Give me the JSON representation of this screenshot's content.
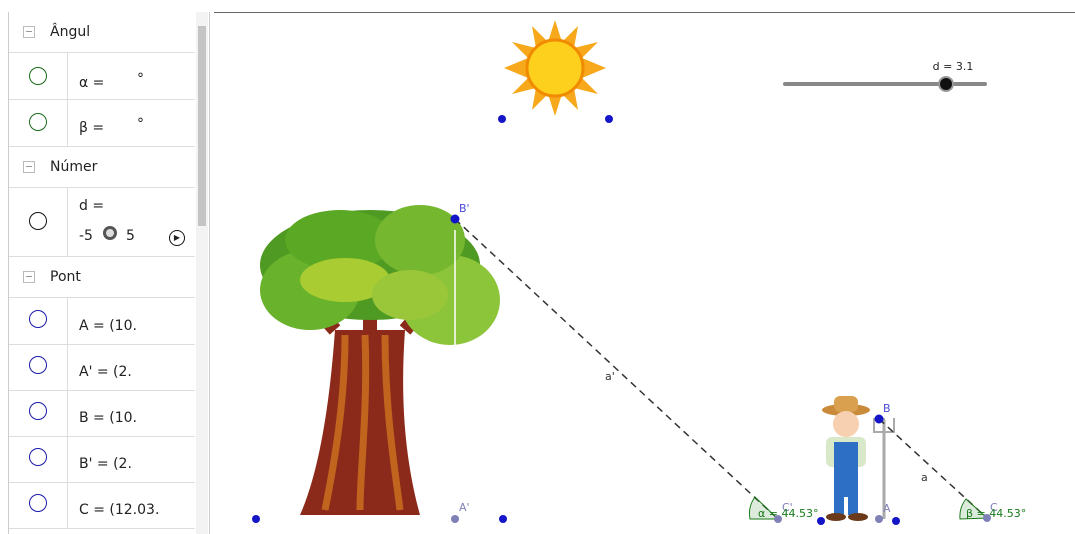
{
  "sidebar": {
    "groups": [
      {
        "title": "Ângul",
        "items": [
          {
            "label": "α =",
            "unit": "°"
          },
          {
            "label": "β =",
            "unit": "°"
          }
        ]
      },
      {
        "title": "Númer",
        "items": [
          {
            "label": "d =",
            "min": "-5",
            "max": "5"
          }
        ]
      },
      {
        "title": "Pont",
        "items": [
          {
            "label": "A = (10."
          },
          {
            "label": "A' = (2."
          },
          {
            "label": "B = (10."
          },
          {
            "label": "B' = (2."
          },
          {
            "label": "C = (12.03."
          }
        ]
      }
    ]
  },
  "graphics": {
    "slider_label": "d = 3.1",
    "point_labels": {
      "B_prime": "B'",
      "B": "B",
      "A_prime": "A'",
      "C_prime": "C'",
      "A": "A",
      "C": "C"
    },
    "segment_labels": {
      "a_prime": "a'",
      "a": "a"
    },
    "angle_labels": {
      "alpha": "α = 44.53°",
      "beta": "β = 44.53°"
    }
  }
}
